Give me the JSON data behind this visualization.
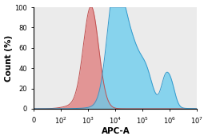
{
  "xlabel": "APC-A",
  "ylabel": "Count (%)",
  "ylim": [
    0,
    100
  ],
  "yticks": [
    0,
    20,
    40,
    60,
    80,
    100
  ],
  "red_color": "#E07878",
  "red_edge": "#C05050",
  "blue_color": "#66CCEE",
  "blue_edge": "#3399CC",
  "alpha_red": 0.75,
  "alpha_blue": 0.75,
  "background": "#EBEBEB",
  "linewidth": 0.7,
  "xlabel_fontsize": 7.5,
  "ylabel_fontsize": 7.5,
  "tick_fontsize": 6.0
}
